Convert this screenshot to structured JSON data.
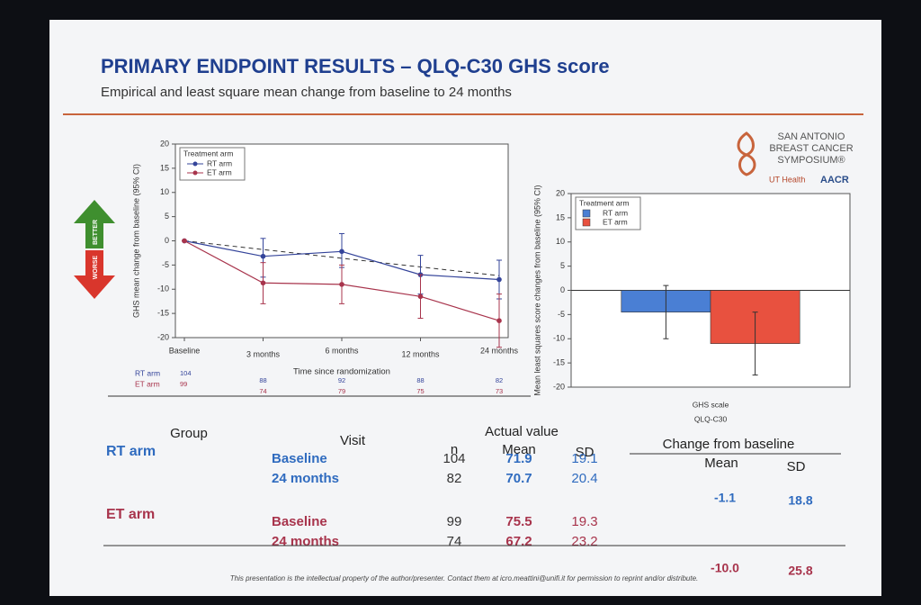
{
  "header": {
    "title": "PRIMARY ENDPOINT RESULTS – QLQ-C30 GHS score",
    "subtitle": "Empirical and least square mean change from baseline to 24 months"
  },
  "logo": {
    "lines": [
      "SAN ANTONIO",
      "BREAST CANCER",
      "SYMPOSIUM®"
    ],
    "partner1": "UT Health",
    "partner2": "AACR"
  },
  "arrows": {
    "up": "BETTER",
    "down": "WORSE"
  },
  "chart_data": [
    {
      "type": "line",
      "ylabel": "GHS mean change from baseline (95% CI)",
      "xlabel": "Time since randomization",
      "categories": [
        "Baseline",
        "3 months",
        "6 months",
        "12 months",
        "24 months"
      ],
      "ylim": [
        -20,
        20
      ],
      "yticks": [
        -20,
        -15,
        -10,
        -5,
        0,
        5,
        10,
        15,
        20
      ],
      "grid": false,
      "legend": "upper left",
      "legend_title": "Treatment arm",
      "series": [
        {
          "name": "RT arm",
          "color": "#34449a",
          "values": [
            0,
            -3.2,
            -2.2,
            -7,
            -8
          ],
          "ci_low": [
            0,
            -7.5,
            -5.5,
            -11,
            -12
          ],
          "ci_high": [
            0,
            0.5,
            1.5,
            -3,
            -4
          ]
        },
        {
          "name": "ET arm",
          "color": "#a8344c",
          "values": [
            0,
            -8.7,
            -9,
            -11.5,
            -16.5
          ],
          "ci_low": [
            0,
            -13,
            -13,
            -16,
            -22
          ],
          "ci_high": [
            0,
            -4.5,
            -5,
            -7,
            -11
          ]
        }
      ],
      "dashed_line": [
        0,
        -7.2
      ],
      "at_risk": [
        {
          "name": "RT arm",
          "values": [
            104,
            88,
            92,
            88,
            82
          ]
        },
        {
          "name": "ET arm",
          "values": [
            99,
            74,
            79,
            75,
            73
          ]
        }
      ]
    },
    {
      "type": "bar",
      "ylabel": "Mean least squares score changes from baseline (95% CI)",
      "xlabel": "QLQ-C30",
      "categories": [
        "GHS scale"
      ],
      "ylim": [
        -20,
        20
      ],
      "yticks": [
        -20,
        -15,
        -10,
        -5,
        0,
        5,
        10,
        15,
        20
      ],
      "grid": false,
      "legend": "upper left",
      "legend_title": "Treatment arm",
      "series": [
        {
          "name": "RT arm",
          "color": "#4a7fd4",
          "values": [
            -4.5
          ],
          "ci_low": [
            -10
          ],
          "ci_high": [
            1
          ]
        },
        {
          "name": "ET arm",
          "color": "#e8513f",
          "values": [
            -11
          ],
          "ci_low": [
            -17.5
          ],
          "ci_high": [
            -4.5
          ]
        }
      ]
    }
  ],
  "table": {
    "headers": {
      "group": "Group",
      "visit": "Visit",
      "actual": "Actual value",
      "n": "n",
      "mean": "Mean",
      "sd": "SD",
      "change": "Change from baseline",
      "change_mean": "Mean",
      "change_sd": "SD"
    },
    "rows": [
      {
        "group": "RT arm",
        "color": "#2f6bbf",
        "visits": [
          {
            "visit": "Baseline",
            "n": "104",
            "mean": "71.9",
            "sd": "19.1"
          },
          {
            "visit": "24 months",
            "n": "82",
            "mean": "70.7",
            "sd": "20.4"
          }
        ],
        "change_mean": "-1.1",
        "change_sd": "18.8"
      },
      {
        "group": "ET arm",
        "color": "#a8344c",
        "visits": [
          {
            "visit": "Baseline",
            "n": "99",
            "mean": "75.5",
            "sd": "19.3"
          },
          {
            "visit": "24 months",
            "n": "74",
            "mean": "67.2",
            "sd": "23.2"
          }
        ],
        "change_mean": "-10.0",
        "change_sd": "25.8"
      }
    ]
  },
  "footer": "This presentation is the intellectual property of the author/presenter. Contact them at icro.meattini@unifi.it for permission to reprint and/or distribute."
}
